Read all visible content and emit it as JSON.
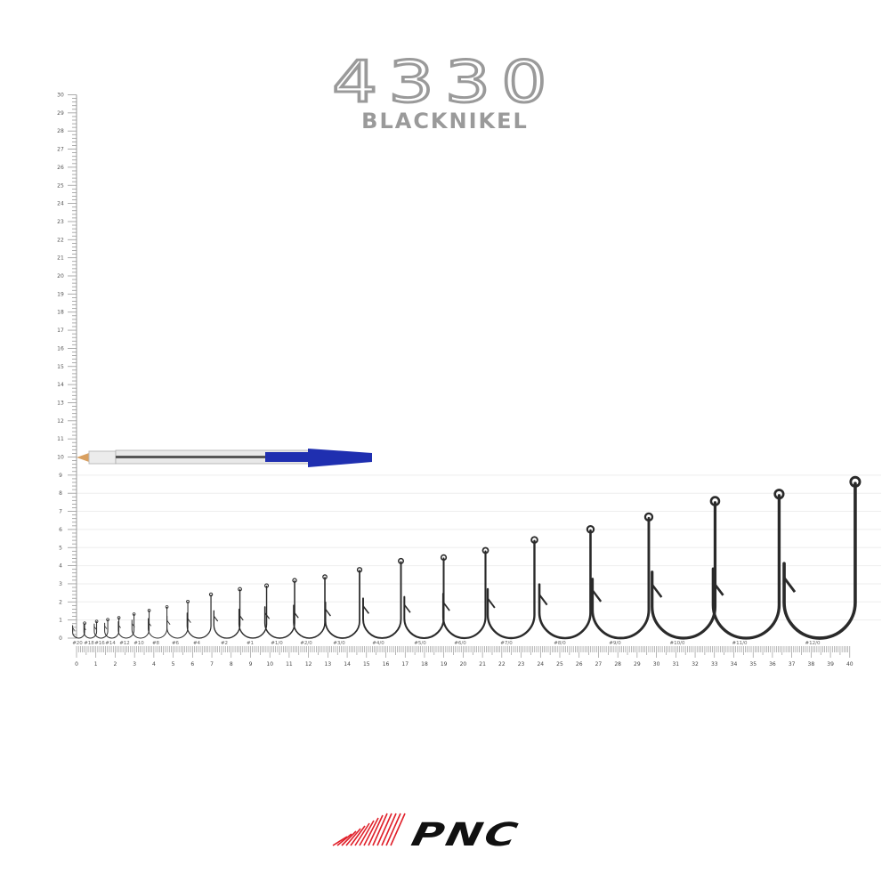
{
  "header": {
    "model": "4330",
    "finish": "BLACKNIKEL"
  },
  "logo": {
    "text": "PNC",
    "accent": "#e0202a"
  },
  "ruler": {
    "vertical_labels": [
      "0",
      "1",
      "2",
      "3",
      "4",
      "5",
      "6",
      "7",
      "8",
      "9",
      "10",
      "11",
      "12",
      "13",
      "14",
      "15",
      "16",
      "17",
      "18",
      "19",
      "20",
      "21",
      "22",
      "23",
      "24",
      "25",
      "26",
      "27",
      "28",
      "29",
      "30"
    ],
    "horizontal_labels": [
      "0",
      "1",
      "2",
      "3",
      "4",
      "5",
      "6",
      "7",
      "8",
      "9",
      "10",
      "11",
      "12",
      "13",
      "14",
      "15",
      "16",
      "17",
      "18",
      "19",
      "20",
      "21",
      "22",
      "23",
      "24",
      "25",
      "26",
      "27",
      "28",
      "29",
      "30",
      "31",
      "32",
      "33",
      "34",
      "35",
      "36",
      "37",
      "38",
      "39",
      "40"
    ],
    "unit_range_vertical": [
      0,
      30
    ],
    "unit_range_horizontal": [
      0,
      40
    ]
  },
  "reference_object": {
    "type": "pen",
    "length": 15.3,
    "cap_color": "#1f2fb0"
  },
  "hooks": [
    {
      "size": "#20",
      "length": 0.9
    },
    {
      "size": "#18",
      "length": 1.0
    },
    {
      "size": "#16",
      "length": 1.1
    },
    {
      "size": "#14",
      "length": 1.2
    },
    {
      "size": "#12",
      "length": 1.4
    },
    {
      "size": "#10",
      "length": 1.6
    },
    {
      "size": "#8",
      "length": 1.8
    },
    {
      "size": "#6",
      "length": 2.1
    },
    {
      "size": "#4",
      "length": 2.5
    },
    {
      "size": "#2",
      "length": 2.8
    },
    {
      "size": "#1",
      "length": 3.0
    },
    {
      "size": "#1/0",
      "length": 3.3
    },
    {
      "size": "#2/0",
      "length": 3.5
    },
    {
      "size": "#3/0",
      "length": 3.9
    },
    {
      "size": "#4/0",
      "length": 4.4
    },
    {
      "size": "#5/0",
      "length": 4.6
    },
    {
      "size": "#6/0",
      "length": 5.0
    },
    {
      "size": "#7/0",
      "length": 5.6
    },
    {
      "size": "#8/0",
      "length": 6.2
    },
    {
      "size": "#9/0",
      "length": 6.9
    },
    {
      "size": "#10/0",
      "length": 7.8
    },
    {
      "size": "#11/0",
      "length": 8.2
    },
    {
      "size": "#12/0",
      "length": 8.9
    }
  ]
}
